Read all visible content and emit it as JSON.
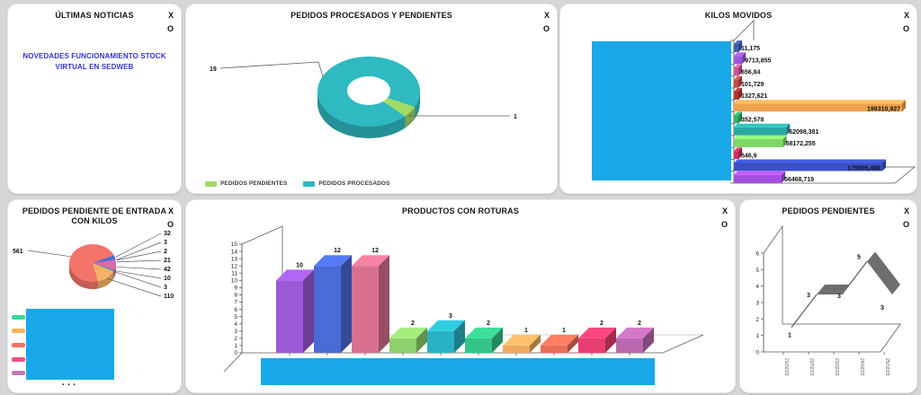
{
  "page": {
    "background": "#d6d6d6"
  },
  "controls": {
    "close": "X",
    "minimize": "O"
  },
  "redaction_color": "#19a8e8",
  "panels": {
    "noticias": {
      "title": "ÚLTIMAS NOTICIAS",
      "link_text": "NOVEDADES FUNCIONAMIENTO STOCK VIRTUAL EN SEDWEB"
    },
    "procesados": {
      "title": "PEDIDOS PROCESADOS Y PENDIENTES"
    },
    "kilos": {
      "title": "KILOS MOVIDOS"
    },
    "entrada": {
      "title": "PEDIDOS PENDIENTE DE ENTRADA CON KILOS",
      "more_indicator": "..."
    },
    "roturas": {
      "title": "PRODUCTOS CON ROTURAS"
    },
    "pendientes": {
      "title": "PEDIDOS PENDIENTES"
    }
  },
  "chart_data": [
    {
      "id": "procesados",
      "type": "pie",
      "style": "3d-donut",
      "title": "PEDIDOS PROCESADOS Y PENDIENTES",
      "series": [
        {
          "name": "PEDIDOS PENDIENTES",
          "value": 1,
          "color": "#a3d964"
        },
        {
          "name": "PEDIDOS PROCESADOS",
          "value": 19,
          "color": "#2fb9c0"
        }
      ],
      "legend_position": "bottom",
      "data_labels": [
        "19",
        "1"
      ]
    },
    {
      "id": "kilos",
      "type": "bar",
      "orientation": "horizontal",
      "style": "3d",
      "title": "KILOS MOVIDOS",
      "categories_redacted": true,
      "values": [
        11.175,
        9713.855,
        656.84,
        101.729,
        1327.621,
        199310.927,
        352.578,
        62098.381,
        58172.255,
        546.9,
        175905.488,
        56468.719
      ],
      "labels": [
        "11,175",
        "9713,855",
        "656,84",
        "101,729",
        "1327,621",
        "199310,927",
        "352,578",
        "62098,381",
        "58172,255",
        "546,9",
        "175905,488",
        "56468,719"
      ],
      "colors": [
        "#3e5cb5",
        "#9c55d4",
        "#d1549b",
        "#c64747",
        "#b53333",
        "#eda24f",
        "#33b06a",
        "#2ba8a2",
        "#7fd76a",
        "#cf2f63",
        "#3c50c4",
        "#a44fe0"
      ],
      "xmax": 199310.927
    },
    {
      "id": "entrada",
      "type": "pie",
      "style": "3d",
      "title": "PEDIDOS PENDIENTE DE ENTRADA CON KILOS",
      "values": [
        32,
        3,
        2,
        21,
        42,
        10,
        3,
        110,
        561
      ],
      "labels": [
        "32",
        "3",
        "2",
        "21",
        "42",
        "10",
        "3",
        "110",
        "561"
      ],
      "colors": [
        "#4472d4",
        "#e84fa0",
        "#9b59b6",
        "#d966c8",
        "#e06c9f",
        "#5d7fd6",
        "#3ed98c",
        "#f2b266",
        "#f4746a"
      ],
      "legend_swatches": [
        "#38d998",
        "#f8b25c",
        "#f87061",
        "#f64f7c",
        "#c478b4"
      ],
      "legend_redacted": true
    },
    {
      "id": "roturas",
      "type": "bar",
      "style": "3d",
      "title": "PRODUCTOS CON ROTURAS",
      "values": [
        10,
        12,
        12,
        2,
        3,
        2,
        1,
        1,
        2,
        2
      ],
      "colors": [
        "#9b59d8",
        "#4a6ad6",
        "#d8718f",
        "#8ed06e",
        "#29b2c4",
        "#34c388",
        "#f0a85e",
        "#e96e57",
        "#ea3e70",
        "#ba68b0"
      ],
      "ylim": [
        0,
        15
      ],
      "x_labels_redacted": true
    },
    {
      "id": "pendientes",
      "type": "line",
      "style": "3d-ribbon",
      "title": "PEDIDOS PENDIENTES",
      "x": [
        "21/02/23",
        "22/02/23",
        "23/02/23",
        "24/02/23",
        "25/02/23"
      ],
      "values": [
        1,
        3,
        3,
        5,
        3
      ],
      "ylim": [
        0,
        6
      ],
      "color": "#6e6e6e"
    }
  ]
}
